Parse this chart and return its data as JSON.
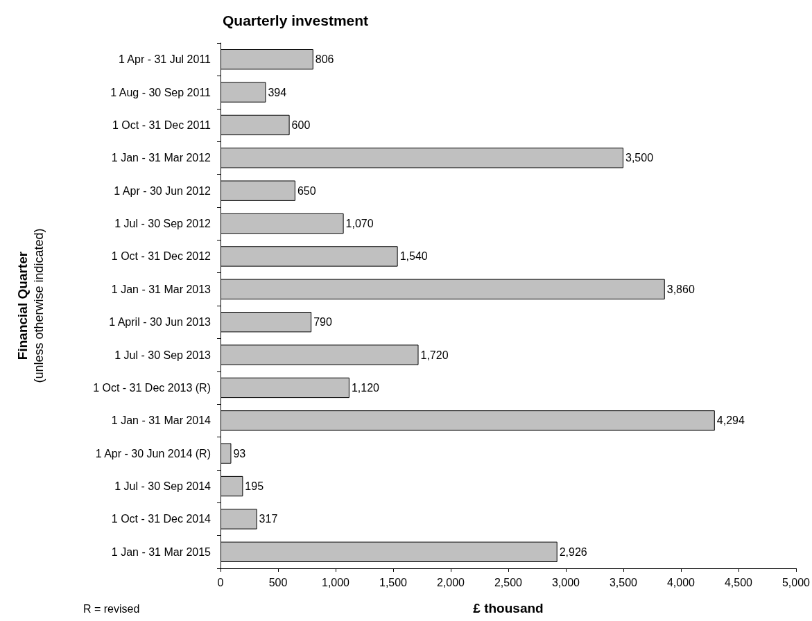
{
  "chart_data": {
    "type": "bar",
    "orientation": "horizontal",
    "title": "Quarterly investment",
    "xlabel": "£ thousand",
    "ylabel": "Financial Quarter\n(unless otherwise indicated)",
    "categories": [
      "1 Apr - 31 Jul 2011",
      "1 Aug - 30 Sep 2011",
      "1 Oct - 31 Dec 2011",
      "1 Jan - 31 Mar 2012",
      "1 Apr - 30 Jun 2012",
      "1 Jul - 30 Sep 2012",
      "1 Oct - 31 Dec 2012",
      "1 Jan - 31 Mar 2013",
      "1 April - 30 Jun 2013",
      "1 Jul - 30 Sep 2013",
      "1 Oct - 31 Dec 2013 (R)",
      "1 Jan - 31 Mar 2014",
      "1 Apr - 30 Jun 2014 (R)",
      "1 Jul - 30 Sep 2014",
      "1 Oct - 31 Dec 2014",
      "1 Jan - 31 Mar 2015"
    ],
    "values": [
      806,
      394,
      600,
      3500,
      650,
      1070,
      1540,
      3860,
      790,
      1720,
      1120,
      4294,
      93,
      195,
      317,
      2926
    ],
    "color": "#c0c0c0",
    "value_labels": [
      "806",
      "394",
      "600",
      "3,500",
      "650",
      "1,070",
      "1,540",
      "3,860",
      "790",
      "1,720",
      "1,120",
      "4,294",
      "93",
      "195",
      "317",
      "2,926"
    ],
    "xlim": [
      0,
      5000
    ],
    "xticks": [
      0,
      500,
      {
        "value": 1000,
        "label": "1,000"
      },
      {
        "value": 1500,
        "label": "1,500"
      },
      {
        "value": 2000,
        "label": "2,000"
      },
      {
        "value": 2500,
        "label": "2,500"
      },
      {
        "value": 3000,
        "label": "3,000"
      },
      {
        "value": 3500,
        "label": "3,500"
      },
      {
        "value": 4000,
        "label": "4,000"
      },
      {
        "value": 4500,
        "label": "4,500"
      },
      {
        "value": 5000,
        "label": "5,000"
      }
    ],
    "grid": false,
    "annotations": [
      "R = revised"
    ]
  }
}
